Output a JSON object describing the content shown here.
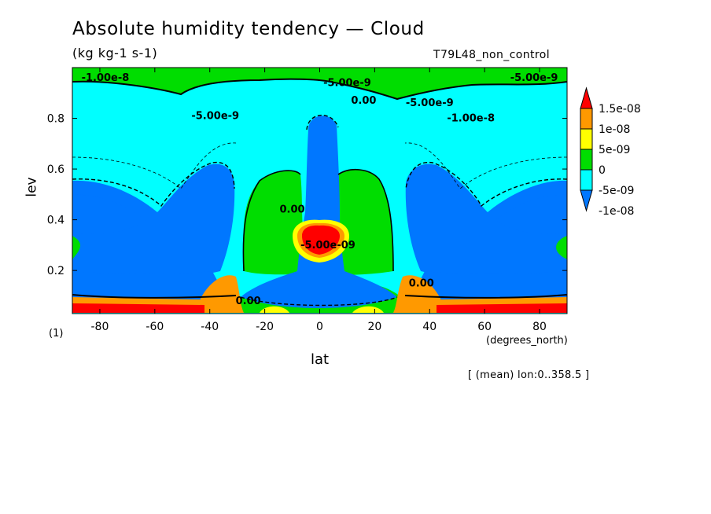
{
  "chart_data": {
    "type": "contour",
    "title": "Absolute humidity tendency — Cloud",
    "units": "(kg kg-1 s-1)",
    "run_label": "T79L48_non_control",
    "xlabel": "lat",
    "x_unit": "(degrees_north)",
    "ylabel": "lev",
    "y_unit": "(1)",
    "subset_note": "[ (mean) lon:0..358.5 ]",
    "xlim": [
      -90,
      90
    ],
    "ylim": [
      1.0,
      0.03
    ],
    "x_ticks": [
      -80,
      -60,
      -40,
      -20,
      0,
      20,
      40,
      60,
      80
    ],
    "x_tick_labels": [
      "-80",
      "-60",
      "-40",
      "-20",
      "0",
      "20",
      "40",
      "60",
      "80"
    ],
    "y_ticks": [
      0.2,
      0.4,
      0.6,
      0.8
    ],
    "y_tick_labels": [
      "0.2",
      "0.4",
      "0.6",
      "0.8"
    ],
    "colorbar": {
      "labels": [
        "1.5e-08",
        "1e-08",
        "5e-09",
        "0",
        "-5e-09",
        "-1e-08"
      ],
      "levels": [
        1.5e-08,
        1e-08,
        5e-09,
        0,
        -5e-09,
        -1e-08
      ],
      "colors": [
        "#ff0000",
        "#ff9900",
        "#ffff00",
        "#00dd00",
        "#00ffff",
        "#0077ff"
      ]
    },
    "contour_labels": [
      {
        "text": "0.00",
        "lat": -26,
        "lev": 0.08
      },
      {
        "text": "0.00",
        "lat": 37,
        "lev": 0.15
      },
      {
        "text": "0.00",
        "lat": -10,
        "lev": 0.44
      },
      {
        "text": "-5.00e-09",
        "lat": 3,
        "lev": 0.3
      },
      {
        "text": "0.00",
        "lat": 16,
        "lev": 0.87
      },
      {
        "text": "-5.00e-9",
        "lat": -38,
        "lev": 0.81
      },
      {
        "text": "-5.00e-9",
        "lat": 40,
        "lev": 0.86
      },
      {
        "text": "-1.00e-8",
        "lat": 55,
        "lev": 0.8
      },
      {
        "text": "-5.00e-9",
        "lat": 10,
        "lev": 0.94
      },
      {
        "text": "-1.00e-8",
        "lat": -78,
        "lev": 0.96
      },
      {
        "text": "-5.00e-9",
        "lat": 78,
        "lev": 0.96
      }
    ]
  },
  "colors": {
    "red": "#ff0000",
    "orange": "#ff9900",
    "yellow": "#ffff00",
    "green": "#00dd00",
    "cyan": "#00ffff",
    "blue": "#0077ff"
  }
}
